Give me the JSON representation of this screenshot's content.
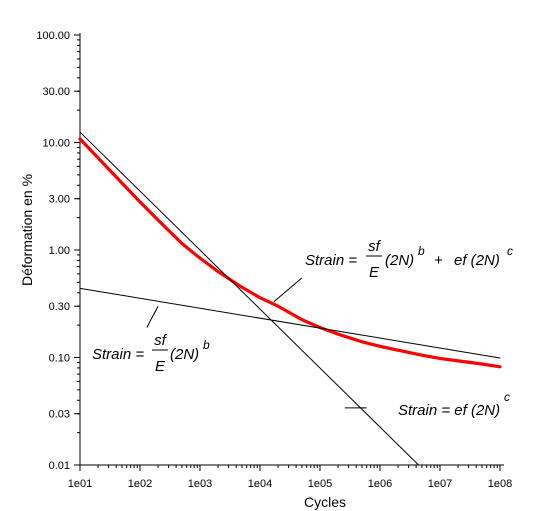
{
  "chart_data": {
    "type": "line",
    "xlabel": "Cycles",
    "ylabel": "Déformation en %",
    "xscale": "log",
    "yscale": "log",
    "xlim": [
      10,
      100000000
    ],
    "ylim": [
      0.01,
      100
    ],
    "grid": false,
    "x_tick_labels": [
      "1e01",
      "1e02",
      "1e03",
      "1e04",
      "1e05",
      "1e06",
      "1e07",
      "1e08"
    ],
    "y_tick_labels": [
      "100.00",
      "30.00",
      "10.00",
      "3.00",
      "1.00",
      "0.30",
      "0.10",
      "0.03",
      "0.01"
    ],
    "series": [
      {
        "color": "#ff0000",
        "x": [
          10,
          20,
          50,
          100,
          200,
          500,
          1000,
          2000,
          5000,
          10000,
          20000,
          50000,
          100000,
          200000,
          500000,
          1000000,
          2000000,
          5000000,
          10000000,
          20000000,
          50000000,
          100000000
        ],
        "y": [
          10.8,
          7.2,
          4.2,
          2.8,
          1.9,
          1.15,
          0.84,
          0.63,
          0.45,
          0.36,
          0.3,
          0.225,
          0.19,
          0.165,
          0.14,
          0.127,
          0.117,
          0.105,
          0.098,
          0.093,
          0.087,
          0.082
        ]
      },
      {
        "color": "#000000",
        "x": [
          10,
          4400000
        ],
        "y": [
          12.5,
          0.01
        ]
      },
      {
        "color": "#000000",
        "x": [
          10,
          100000000
        ],
        "y": [
          0.44,
          0.099
        ]
      }
    ],
    "annotations": [
      {
        "id": "total",
        "parts": [
          "Strain = ",
          "sf",
          "E",
          "(2N)",
          "b",
          "+",
          "ef (2N)",
          "c"
        ],
        "leader_from": [
          17000,
          0.33
        ],
        "leader_to": [
          50000,
          0.55
        ]
      },
      {
        "id": "elastic",
        "parts": [
          "Strain = ",
          "sf",
          "E",
          "(2N)",
          "b"
        ],
        "leader_from": [
          200,
          0.3
        ],
        "leader_to": [
          130,
          0.19
        ]
      },
      {
        "id": "plastic",
        "parts": [
          "Strain = ef (2N)",
          "c"
        ],
        "leader_from": [
          260000,
          0.034
        ],
        "leader_to": [
          600000,
          0.034
        ]
      }
    ]
  }
}
